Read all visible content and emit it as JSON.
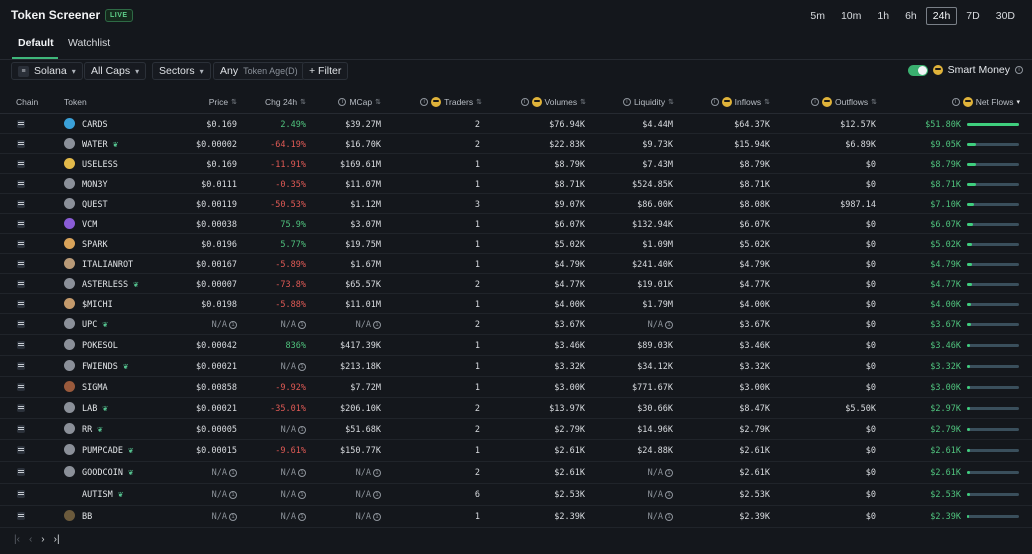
{
  "header": {
    "title": "Token Screener",
    "live_label": "LIVE"
  },
  "timeframes": [
    {
      "label": "5m",
      "active": false
    },
    {
      "label": "10m",
      "active": false
    },
    {
      "label": "1h",
      "active": false
    },
    {
      "label": "6h",
      "active": false
    },
    {
      "label": "24h",
      "active": true
    },
    {
      "label": "7D",
      "active": false
    },
    {
      "label": "30D",
      "active": false
    }
  ],
  "tabs": {
    "default": "Default",
    "watchlist": "Watchlist"
  },
  "filters": {
    "chain": "Solana",
    "caps": "All Caps",
    "sectors": "Sectors",
    "age_value": "Any",
    "age_label": "Token Age(D)",
    "filter": "+ Filter",
    "smart_money": "Smart Money"
  },
  "columns": {
    "chain": "Chain",
    "token": "Token",
    "price": "Price",
    "chg": "Chg 24h",
    "mcap": "MCap",
    "traders": "Traders",
    "volumes": "Volumes",
    "liquidity": "Liquidity",
    "inflows": "Inflows",
    "outflows": "Outflows",
    "netflows": "Net Flows"
  },
  "rows": [
    {
      "token": "CARDS",
      "plant": false,
      "icon_color": "#3aa0d8",
      "price": "$0.169",
      "chg": "2.49%",
      "chg_dir": "pos",
      "mcap": "$39.27M",
      "traders": "2",
      "volumes": "$76.94K",
      "liquidity": "$4.44M",
      "inflows": "$64.37K",
      "outflows": "$12.57K",
      "netflows": "$51.80K",
      "netflow_value": 51.8
    },
    {
      "token": "WATER",
      "plant": true,
      "icon_color": "#8b9099",
      "price": "$0.00002",
      "chg": "-64.19%",
      "chg_dir": "neg",
      "mcap": "$16.70K",
      "traders": "2",
      "volumes": "$22.83K",
      "liquidity": "$9.73K",
      "inflows": "$15.94K",
      "outflows": "$6.89K",
      "netflows": "$9.05K",
      "netflow_value": 9.05
    },
    {
      "token": "USELESS",
      "plant": false,
      "icon_color": "#e2b94a",
      "price": "$0.169",
      "chg": "-11.91%",
      "chg_dir": "neg",
      "mcap": "$169.61M",
      "traders": "1",
      "volumes": "$8.79K",
      "liquidity": "$7.43M",
      "inflows": "$8.79K",
      "outflows": "$0",
      "netflows": "$8.79K",
      "netflow_value": 8.79
    },
    {
      "token": "MON3Y",
      "plant": false,
      "icon_color": "#8b9099",
      "price": "$0.0111",
      "chg": "-0.35%",
      "chg_dir": "neg",
      "mcap": "$11.07M",
      "traders": "1",
      "volumes": "$8.71K",
      "liquidity": "$524.85K",
      "inflows": "$8.71K",
      "outflows": "$0",
      "netflows": "$8.71K",
      "netflow_value": 8.71
    },
    {
      "token": "QUEST",
      "plant": false,
      "icon_color": "#8b9099",
      "price": "$0.00119",
      "chg": "-50.53%",
      "chg_dir": "neg",
      "mcap": "$1.12M",
      "traders": "3",
      "volumes": "$9.07K",
      "liquidity": "$86.00K",
      "inflows": "$8.08K",
      "outflows": "$987.14",
      "netflows": "$7.10K",
      "netflow_value": 7.1
    },
    {
      "token": "VCM",
      "plant": false,
      "icon_color": "#8a5cd6",
      "price": "$0.00038",
      "chg": "75.9%",
      "chg_dir": "pos",
      "mcap": "$3.07M",
      "traders": "1",
      "volumes": "$6.07K",
      "liquidity": "$132.94K",
      "inflows": "$6.07K",
      "outflows": "$0",
      "netflows": "$6.07K",
      "netflow_value": 6.07
    },
    {
      "token": "SPARK",
      "plant": false,
      "icon_color": "#d9a35a",
      "price": "$0.0196",
      "chg": "5.77%",
      "chg_dir": "pos",
      "mcap": "$19.75M",
      "traders": "1",
      "volumes": "$5.02K",
      "liquidity": "$1.09M",
      "inflows": "$5.02K",
      "outflows": "$0",
      "netflows": "$5.02K",
      "netflow_value": 5.02
    },
    {
      "token": "ITALIANROT",
      "plant": false,
      "icon_color": "#b99a78",
      "price": "$0.00167",
      "chg": "-5.89%",
      "chg_dir": "neg",
      "mcap": "$1.67M",
      "traders": "1",
      "volumes": "$4.79K",
      "liquidity": "$241.40K",
      "inflows": "$4.79K",
      "outflows": "$0",
      "netflows": "$4.79K",
      "netflow_value": 4.79
    },
    {
      "token": "ASTERLESS",
      "plant": true,
      "icon_color": "#8b9099",
      "price": "$0.00007",
      "chg": "-73.8%",
      "chg_dir": "neg",
      "mcap": "$65.57K",
      "traders": "2",
      "volumes": "$4.77K",
      "liquidity": "$19.01K",
      "inflows": "$4.77K",
      "outflows": "$0",
      "netflows": "$4.77K",
      "netflow_value": 4.77
    },
    {
      "token": "$MICHI",
      "plant": false,
      "icon_color": "#c49a6c",
      "price": "$0.0198",
      "chg": "-5.88%",
      "chg_dir": "neg",
      "mcap": "$11.01M",
      "traders": "1",
      "volumes": "$4.00K",
      "liquidity": "$1.79M",
      "inflows": "$4.00K",
      "outflows": "$0",
      "netflows": "$4.00K",
      "netflow_value": 4.0
    },
    {
      "token": "UPC",
      "plant": true,
      "icon_color": "#8b9099",
      "price": "N/A",
      "chg": "N/A",
      "chg_dir": "na",
      "mcap": "N/A",
      "traders": "2",
      "volumes": "$3.67K",
      "liquidity": "N/A",
      "inflows": "$3.67K",
      "outflows": "$0",
      "netflows": "$3.67K",
      "netflow_value": 3.67
    },
    {
      "token": "POKESOL",
      "plant": false,
      "icon_color": "#8b9099",
      "price": "$0.00042",
      "chg": "836%",
      "chg_dir": "pos",
      "mcap": "$417.39K",
      "traders": "1",
      "volumes": "$3.46K",
      "liquidity": "$89.03K",
      "inflows": "$3.46K",
      "outflows": "$0",
      "netflows": "$3.46K",
      "netflow_value": 3.46
    },
    {
      "token": "FWIENDS",
      "plant": true,
      "icon_color": "#8b9099",
      "price": "$0.00021",
      "chg": "N/A",
      "chg_dir": "na",
      "mcap": "$213.18K",
      "traders": "1",
      "volumes": "$3.32K",
      "liquidity": "$34.12K",
      "inflows": "$3.32K",
      "outflows": "$0",
      "netflows": "$3.32K",
      "netflow_value": 3.32
    },
    {
      "token": "SIGMA",
      "plant": false,
      "icon_color": "#9a5a3c",
      "price": "$0.00858",
      "chg": "-9.92%",
      "chg_dir": "neg",
      "mcap": "$7.72M",
      "traders": "1",
      "volumes": "$3.00K",
      "liquidity": "$771.67K",
      "inflows": "$3.00K",
      "outflows": "$0",
      "netflows": "$3.00K",
      "netflow_value": 3.0
    },
    {
      "token": "LAB",
      "plant": true,
      "icon_color": "#8b9099",
      "price": "$0.00021",
      "chg": "-35.01%",
      "chg_dir": "neg",
      "mcap": "$206.10K",
      "traders": "2",
      "volumes": "$13.97K",
      "liquidity": "$30.66K",
      "inflows": "$8.47K",
      "outflows": "$5.50K",
      "netflows": "$2.97K",
      "netflow_value": 2.97
    },
    {
      "token": "RR",
      "plant": true,
      "icon_color": "#8b9099",
      "price": "$0.00005",
      "chg": "N/A",
      "chg_dir": "na",
      "mcap": "$51.68K",
      "traders": "2",
      "volumes": "$2.79K",
      "liquidity": "$14.96K",
      "inflows": "$2.79K",
      "outflows": "$0",
      "netflows": "$2.79K",
      "netflow_value": 2.79
    },
    {
      "token": "PUMPCADE",
      "plant": true,
      "icon_color": "#8b9099",
      "price": "$0.00015",
      "chg": "-9.61%",
      "chg_dir": "neg",
      "mcap": "$150.77K",
      "traders": "1",
      "volumes": "$2.61K",
      "liquidity": "$24.88K",
      "inflows": "$2.61K",
      "outflows": "$0",
      "netflows": "$2.61K",
      "netflow_value": 2.61
    },
    {
      "token": "GOODCOIN",
      "plant": true,
      "icon_color": "#8b9099",
      "price": "N/A",
      "chg": "N/A",
      "chg_dir": "na",
      "mcap": "N/A",
      "traders": "2",
      "volumes": "$2.61K",
      "liquidity": "N/A",
      "inflows": "$2.61K",
      "outflows": "$0",
      "netflows": "$2.61K",
      "netflow_value": 2.61
    },
    {
      "token": "AUTISM",
      "plant": true,
      "icon_color": "none",
      "price": "N/A",
      "chg": "N/A",
      "chg_dir": "na",
      "mcap": "N/A",
      "traders": "6",
      "volumes": "$2.53K",
      "liquidity": "N/A",
      "inflows": "$2.53K",
      "outflows": "$0",
      "netflows": "$2.53K",
      "netflow_value": 2.53
    },
    {
      "token": "BB",
      "plant": false,
      "icon_color": "#6b5a3c",
      "price": "N/A",
      "chg": "N/A",
      "chg_dir": "na",
      "mcap": "N/A",
      "traders": "1",
      "volumes": "$2.39K",
      "liquidity": "N/A",
      "inflows": "$2.39K",
      "outflows": "$0",
      "netflows": "$2.39K",
      "netflow_value": 2.39
    }
  ],
  "pagination": {
    "first": "|‹",
    "prev": "‹",
    "next": "›",
    "last": "›|"
  }
}
